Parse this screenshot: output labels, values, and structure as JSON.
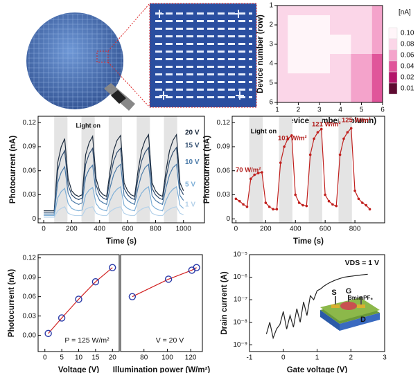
{
  "chart_data": [
    {
      "type": "heatmap",
      "x_label": "Device number (column)",
      "y_label": "Device number (row)",
      "xlim": [
        1,
        6
      ],
      "ylim": [
        6,
        1
      ],
      "xticks": [
        1,
        2,
        3,
        4,
        5,
        6
      ],
      "yticks": [
        1,
        2,
        3,
        4,
        5,
        6
      ],
      "z": [
        [
          0.085,
          0.09,
          0.085,
          0.08,
          0.07,
          0.06
        ],
        [
          0.08,
          0.1,
          0.1,
          0.09,
          0.07,
          0.05
        ],
        [
          0.08,
          0.1,
          0.1,
          0.1,
          0.075,
          0.05
        ],
        [
          0.08,
          0.1,
          0.1,
          0.09,
          0.06,
          0.04
        ],
        [
          0.085,
          0.09,
          0.085,
          0.08,
          0.06,
          0.045
        ],
        [
          0.08,
          0.08,
          0.08,
          0.07,
          0.05,
          0.04
        ]
      ],
      "colorbar": {
        "title": "[nA]",
        "ticks": [
          {
            "value": 0.1,
            "label": "0.10"
          },
          {
            "value": 0.08,
            "label": "0.08"
          },
          {
            "value": 0.06,
            "label": "0.06"
          },
          {
            "value": 0.04,
            "label": "0.04"
          },
          {
            "value": 0.02,
            "label": "0.02"
          },
          {
            "value": 0.01,
            "label": "0.01"
          }
        ],
        "colors": [
          "#fff5f9",
          "#fbd6e8",
          "#f4a3cb",
          "#e0559a",
          "#b3156a",
          "#5e0a31"
        ]
      }
    },
    {
      "type": "line",
      "x_label": "Time (s)",
      "y_label": "Photocurrent (nA)",
      "annotation": "Light on",
      "xlim": [
        -40,
        1150
      ],
      "ylim": [
        -0.005,
        0.128
      ],
      "xticks": [
        0,
        200,
        400,
        600,
        800,
        1000
      ],
      "yticks": [
        0,
        0.03,
        0.06,
        0.09,
        0.12
      ],
      "light_on": [
        [
          75,
          170
        ],
        [
          270,
          365
        ],
        [
          465,
          560
        ],
        [
          665,
          760
        ],
        [
          860,
          955
        ]
      ],
      "x": [
        0,
        25,
        50,
        75,
        100,
        125,
        150,
        175,
        200,
        225,
        250,
        275,
        300,
        325,
        350,
        375,
        400,
        425,
        450,
        475,
        500,
        525,
        550,
        575,
        600,
        625,
        650,
        675,
        700,
        725,
        750,
        775,
        800,
        825,
        850,
        875,
        900,
        925,
        950,
        975,
        1000
      ],
      "series": [
        {
          "name": "20 V",
          "color": "#1c2b3d",
          "values": [
            0.01,
            0.01,
            0.01,
            0.01,
            0.07,
            0.09,
            0.1,
            0.05,
            0.035,
            0.03,
            0.028,
            0.03,
            0.08,
            0.095,
            0.103,
            0.05,
            0.035,
            0.03,
            0.028,
            0.06,
            0.085,
            0.098,
            0.104,
            0.045,
            0.035,
            0.03,
            0.028,
            0.06,
            0.085,
            0.098,
            0.105,
            0.045,
            0.035,
            0.03,
            0.028,
            0.06,
            0.085,
            0.098,
            0.105,
            0.045,
            0.035
          ]
        },
        {
          "name": "15 V",
          "color": "#2f4c6e",
          "values": [
            0.008,
            0.008,
            0.008,
            0.008,
            0.06,
            0.077,
            0.085,
            0.042,
            0.03,
            0.026,
            0.024,
            0.026,
            0.068,
            0.081,
            0.088,
            0.042,
            0.03,
            0.026,
            0.024,
            0.051,
            0.072,
            0.083,
            0.088,
            0.038,
            0.03,
            0.026,
            0.024,
            0.051,
            0.072,
            0.083,
            0.089,
            0.038,
            0.03,
            0.026,
            0.024,
            0.051,
            0.072,
            0.083,
            0.089,
            0.038,
            0.03
          ]
        },
        {
          "name": "10 V",
          "color": "#4a7aa8",
          "values": [
            0.006,
            0.006,
            0.006,
            0.006,
            0.045,
            0.058,
            0.065,
            0.032,
            0.023,
            0.02,
            0.018,
            0.02,
            0.052,
            0.062,
            0.067,
            0.032,
            0.023,
            0.02,
            0.018,
            0.039,
            0.055,
            0.064,
            0.068,
            0.029,
            0.023,
            0.02,
            0.018,
            0.039,
            0.055,
            0.064,
            0.068,
            0.029,
            0.023,
            0.02,
            0.018,
            0.039,
            0.055,
            0.064,
            0.068,
            0.029,
            0.023
          ]
        },
        {
          "name": "5 V",
          "color": "#7fb0d8",
          "values": [
            0.004,
            0.004,
            0.004,
            0.004,
            0.026,
            0.034,
            0.038,
            0.019,
            0.013,
            0.011,
            0.01,
            0.011,
            0.03,
            0.036,
            0.039,
            0.019,
            0.013,
            0.011,
            0.01,
            0.023,
            0.032,
            0.037,
            0.04,
            0.017,
            0.013,
            0.011,
            0.01,
            0.023,
            0.032,
            0.037,
            0.04,
            0.017,
            0.013,
            0.011,
            0.01,
            0.023,
            0.032,
            0.037,
            0.04,
            0.017,
            0.013
          ]
        },
        {
          "name": "1 V",
          "color": "#b5d2ea",
          "values": [
            0.002,
            0.002,
            0.002,
            0.002,
            0.01,
            0.013,
            0.015,
            0.007,
            0.005,
            0.004,
            0.004,
            0.004,
            0.012,
            0.014,
            0.015,
            0.007,
            0.005,
            0.004,
            0.004,
            0.009,
            0.012,
            0.014,
            0.015,
            0.007,
            0.005,
            0.004,
            0.004,
            0.009,
            0.012,
            0.014,
            0.015,
            0.007,
            0.005,
            0.004,
            0.004,
            0.009,
            0.012,
            0.014,
            0.015,
            0.007,
            0.005
          ]
        }
      ]
    },
    {
      "type": "line",
      "x_label": "Time (s)",
      "y_label": "Photocurrent (nA)",
      "markers": true,
      "annotations": [
        "Light on",
        "70 W/m²",
        "101 W/m²",
        "121 W/m²",
        "125 W/m²"
      ],
      "xlim": [
        -25,
        1000
      ],
      "ylim": [
        -0.005,
        0.128
      ],
      "xticks": [
        0,
        200,
        400,
        600,
        800
      ],
      "yticks": [
        0,
        0.03,
        0.06,
        0.09,
        0.12
      ],
      "light_on": [
        [
          90,
          180
        ],
        [
          290,
          380
        ],
        [
          490,
          580
        ],
        [
          690,
          780
        ]
      ],
      "x": [
        0,
        25,
        50,
        75,
        100,
        125,
        150,
        175,
        200,
        225,
        250,
        275,
        300,
        325,
        350,
        375,
        400,
        425,
        450,
        475,
        500,
        525,
        550,
        575,
        600,
        625,
        650,
        675,
        700,
        725,
        750,
        775,
        800,
        825,
        850,
        875,
        900
      ],
      "series": [
        {
          "name": "Photocurrent",
          "color": "#c0201e",
          "values": [
            0.025,
            0.022,
            0.018,
            0.015,
            0.05,
            0.055,
            0.057,
            0.058,
            0.02,
            0.015,
            0.012,
            0.012,
            0.07,
            0.09,
            0.1,
            0.104,
            0.03,
            0.02,
            0.017,
            0.016,
            0.08,
            0.1,
            0.108,
            0.112,
            0.03,
            0.022,
            0.018,
            0.016,
            0.08,
            0.1,
            0.108,
            0.113,
            0.035,
            0.025,
            0.02,
            0.017,
            0.012
          ]
        }
      ]
    },
    {
      "type": "scatter",
      "x_label": "Voltage (V)",
      "y_label": "Photocurrent (nA)",
      "annotation": "P = 125 W/m²",
      "xlim": [
        -2,
        22
      ],
      "ylim": [
        -0.025,
        0.125
      ],
      "xticks": [
        0,
        5,
        10,
        15,
        20
      ],
      "yticks": [
        {
          "value": 0,
          "label": "0.00"
        },
        0.03,
        0.06,
        0.09,
        0.12
      ],
      "x": [
        1,
        5,
        10,
        15,
        20
      ],
      "values": [
        0.003,
        0.027,
        0.056,
        0.083,
        0.105
      ]
    },
    {
      "type": "scatter",
      "x_label": "Illumination power (W/m²)",
      "annotation": "V = 20 V",
      "xlim": [
        60,
        130
      ],
      "ylim": [
        -0.025,
        0.125
      ],
      "xticks": [
        80,
        100,
        120
      ],
      "x": [
        70,
        101,
        121,
        125
      ],
      "values": [
        0.06,
        0.087,
        0.101,
        0.105
      ]
    },
    {
      "type": "line",
      "x_label": "Gate voltage (V)",
      "y_label": "Drain current (A)",
      "log_y": true,
      "annotation": "VDS = 1 V",
      "inset_labels": [
        "S",
        "G",
        "BmimPF₆",
        "D"
      ],
      "xlim": [
        -1,
        3
      ],
      "ylim": [
        5e-10,
        1e-05
      ],
      "xticks": [
        -1,
        0,
        1,
        2,
        3
      ],
      "yticks": [
        {
          "value": 1e-09,
          "label": "10⁻⁹"
        },
        {
          "value": 1e-08,
          "label": "10⁻⁸"
        },
        {
          "value": 1e-07,
          "label": "10⁻⁷"
        },
        {
          "value": 1e-06,
          "label": "10⁻⁶"
        },
        {
          "value": 1e-05,
          "label": "10⁻⁵"
        }
      ],
      "x": [
        -0.5,
        -0.4,
        -0.3,
        -0.2,
        -0.1,
        0,
        0.1,
        0.2,
        0.3,
        0.4,
        0.5,
        0.6,
        0.7,
        0.8,
        0.9,
        1,
        1.1,
        1.2,
        1.3,
        1.4,
        1.5,
        1.6,
        1.7,
        1.8,
        1.9,
        2,
        2.1,
        2.2,
        2.3,
        2.4,
        2.5
      ],
      "series": [
        {
          "name": "Drain current",
          "color": "#222222",
          "values": [
            3e-09,
            1e-08,
            2e-09,
            5e-09,
            8e-09,
            3e-08,
            5e-09,
            2e-08,
            6e-09,
            4e-08,
            1e-08,
            8e-08,
            2e-08,
            1.5e-07,
            1e-07,
            2.5e-07,
            3e-07,
            4e-07,
            5e-07,
            6e-07,
            7e-07,
            8e-07,
            9e-07,
            1e-06,
            1.05e-06,
            1.1e-06,
            1.15e-06,
            1.2e-06,
            1.25e-06,
            1.3e-06,
            1.35e-06
          ]
        }
      ]
    }
  ]
}
